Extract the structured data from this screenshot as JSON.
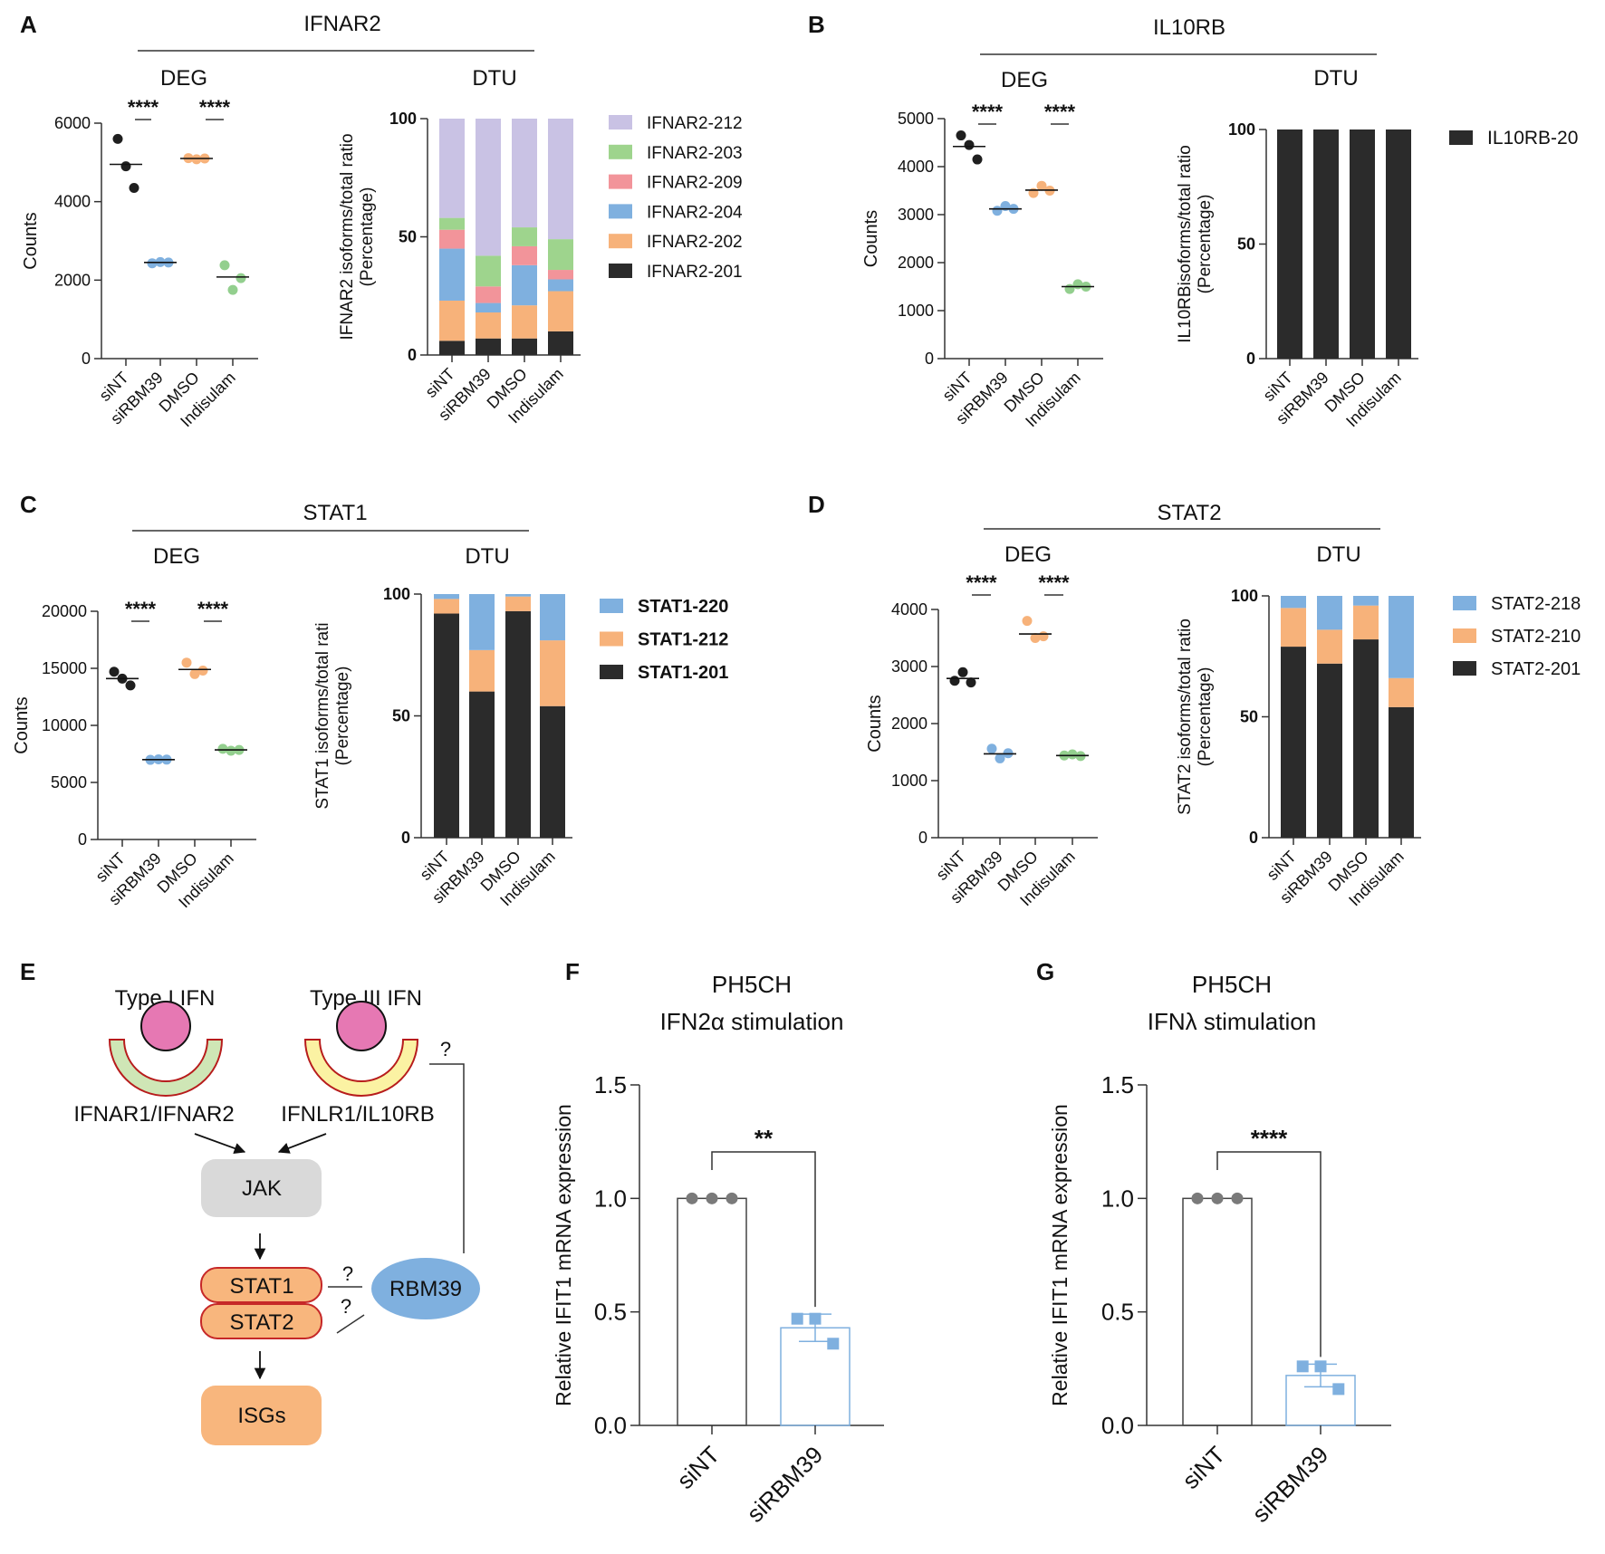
{
  "panel_letters": {
    "A": "A",
    "B": "B",
    "C": "C",
    "D": "D",
    "E": "E",
    "F": "F",
    "G": "G"
  },
  "sections": {
    "deg": "DEG",
    "dtu": "DTU"
  },
  "common": {
    "counts_label": "Counts",
    "conditions": [
      "siNT",
      "siRBM39",
      "DMSO",
      "Indisulam"
    ],
    "significance": "****"
  },
  "colors": {
    "black": "#1f1f1f",
    "blue": "#7fb0df",
    "orange": "#f7b27a",
    "green": "#93cf8e",
    "purple": "#c9c2e4",
    "lightgreen": "#9ed48d",
    "pink": "#f2949a",
    "darkbar": "#2b2b2b"
  },
  "chart_data": [
    {
      "id": "A-deg",
      "type": "scatter",
      "gene": "IFNAR2",
      "ylabel": "Counts",
      "categories": [
        "siNT",
        "siRBM39",
        "DMSO",
        "Indisulam"
      ],
      "ylim": [
        0,
        6000
      ],
      "yticks": [
        "0",
        "2000",
        "4000",
        "6000"
      ],
      "points": [
        [
          5600,
          4900,
          4350
        ],
        [
          2430,
          2460,
          2450
        ],
        [
          5110,
          5080,
          5100
        ],
        [
          2380,
          1750,
          2050
        ]
      ],
      "means": [
        4950,
        2450,
        5100,
        2080
      ],
      "significance": [
        "****",
        "****"
      ]
    },
    {
      "id": "A-dtu",
      "type": "bar",
      "stacked": true,
      "gene": "IFNAR2",
      "ylabel": "IFNAR2 isoforms/total ratio (Percentage)",
      "categories": [
        "siNT",
        "siRBM39",
        "DMSO",
        "Indisulam"
      ],
      "ylim": [
        0,
        100
      ],
      "yticks": [
        "0",
        "50",
        "100"
      ],
      "series": [
        {
          "name": "IFNAR2-201",
          "values": [
            6,
            7,
            7,
            10
          ]
        },
        {
          "name": "IFNAR2-202",
          "values": [
            17,
            11,
            14,
            17
          ]
        },
        {
          "name": "IFNAR2-204",
          "values": [
            22,
            4,
            17,
            5
          ]
        },
        {
          "name": "IFNAR2-209",
          "values": [
            8,
            7,
            8,
            4
          ]
        },
        {
          "name": "IFNAR2-203",
          "values": [
            5,
            13,
            8,
            13
          ]
        },
        {
          "name": "IFNAR2-212",
          "values": [
            42,
            58,
            46,
            51
          ]
        }
      ]
    },
    {
      "id": "B-deg",
      "type": "scatter",
      "gene": "IL10RB",
      "ylabel": "Counts",
      "categories": [
        "siNT",
        "siRBM39",
        "DMSO",
        "Indisulam"
      ],
      "ylim": [
        0,
        5000
      ],
      "yticks": [
        "0",
        "1000",
        "2000",
        "3000",
        "4000",
        "5000"
      ],
      "points": [
        [
          4650,
          4450,
          4150
        ],
        [
          3080,
          3180,
          3120
        ],
        [
          3450,
          3600,
          3500
        ],
        [
          1450,
          1550,
          1500
        ]
      ],
      "means": [
        4420,
        3120,
        3510,
        1500
      ],
      "significance": [
        "****",
        "****"
      ]
    },
    {
      "id": "B-dtu",
      "type": "bar",
      "stacked": true,
      "gene": "IL10RB",
      "ylabel": "IL10RBisoforms/total ratio (Percentage)",
      "categories": [
        "siNT",
        "siRBM39",
        "DMSO",
        "Indisulam"
      ],
      "ylim": [
        0,
        100
      ],
      "yticks": [
        "0",
        "50",
        "100"
      ],
      "series": [
        {
          "name": "IL10RB-20",
          "values": [
            100,
            100,
            100,
            100
          ]
        }
      ]
    },
    {
      "id": "C-deg",
      "type": "scatter",
      "gene": "STAT1",
      "ylabel": "Counts",
      "categories": [
        "siNT",
        "siRBM39",
        "DMSO",
        "Indisulam"
      ],
      "ylim": [
        0,
        20000
      ],
      "yticks": [
        "0",
        "5000",
        "10000",
        "15000",
        "20000"
      ],
      "points": [
        [
          14700,
          14100,
          13500
        ],
        [
          6980,
          7020,
          7000
        ],
        [
          15500,
          14500,
          14800
        ],
        [
          7950,
          7780,
          7850
        ]
      ],
      "means": [
        14100,
        7000,
        14900,
        7850
      ],
      "significance": [
        "****",
        "****"
      ]
    },
    {
      "id": "C-dtu",
      "type": "bar",
      "stacked": true,
      "gene": "STAT1",
      "ylabel": "STAT1 isoforms/total rati (Percentage)",
      "categories": [
        "siNT",
        "siRBM39",
        "DMSO",
        "Indisulam"
      ],
      "ylim": [
        0,
        100
      ],
      "yticks": [
        "0",
        "50",
        "100"
      ],
      "series": [
        {
          "name": "STAT1-201",
          "values": [
            92,
            60,
            93,
            54
          ]
        },
        {
          "name": "STAT1-212",
          "values": [
            6,
            17,
            6,
            27
          ]
        },
        {
          "name": "STAT1-220",
          "values": [
            2,
            23,
            1,
            19
          ]
        }
      ]
    },
    {
      "id": "D-deg",
      "type": "scatter",
      "gene": "STAT2",
      "ylabel": "Counts",
      "categories": [
        "siNT",
        "siRBM39",
        "DMSO",
        "Indisulam"
      ],
      "ylim": [
        0,
        4000
      ],
      "yticks": [
        "0",
        "1000",
        "2000",
        "3000",
        "4000"
      ],
      "points": [
        [
          2750,
          2900,
          2720
        ],
        [
          1560,
          1390,
          1480
        ],
        [
          3800,
          3500,
          3530
        ],
        [
          1440,
          1460,
          1430
        ]
      ],
      "means": [
        2790,
        1470,
        3570,
        1440
      ],
      "significance": [
        "****",
        "****"
      ]
    },
    {
      "id": "D-dtu",
      "type": "bar",
      "stacked": true,
      "gene": "STAT2",
      "ylabel": "STAT2 isoforms/total ratio (Percentage)",
      "categories": [
        "siNT",
        "siRBM39",
        "DMSO",
        "Indisulam"
      ],
      "ylim": [
        0,
        100
      ],
      "yticks": [
        "0",
        "50",
        "100"
      ],
      "series": [
        {
          "name": "STAT2-201",
          "values": [
            79,
            72,
            82,
            54
          ]
        },
        {
          "name": "STAT2-210",
          "values": [
            16,
            14,
            14,
            12
          ]
        },
        {
          "name": "STAT2-218",
          "values": [
            5,
            14,
            4,
            34
          ]
        }
      ]
    },
    {
      "id": "F",
      "type": "bar",
      "title": "PH5CH",
      "subtitle": "IFN2α stimulation",
      "ylabel": "Relative IFIT1 mRNA expression",
      "categories": [
        "siNT",
        "siRBM39"
      ],
      "values": [
        1.0,
        0.43
      ],
      "errors": [
        0.0,
        0.06
      ],
      "points": [
        [
          1.0,
          1.0,
          1.0
        ],
        [
          0.47,
          0.47,
          0.36
        ]
      ],
      "ylim": [
        0,
        1.5
      ],
      "yticks": [
        "0.0",
        "0.5",
        "1.0",
        "1.5"
      ],
      "significance": "**"
    },
    {
      "id": "G",
      "type": "bar",
      "title": "PH5CH",
      "subtitle": "IFNλ stimulation",
      "ylabel": "Relative IFIT1 mRNA expression",
      "categories": [
        "siNT",
        "siRBM39"
      ],
      "values": [
        1.0,
        0.22
      ],
      "errors": [
        0.0,
        0.05
      ],
      "points": [
        [
          1.0,
          1.0,
          1.0
        ],
        [
          0.26,
          0.26,
          0.16
        ]
      ],
      "ylim": [
        0,
        1.5
      ],
      "yticks": [
        "0.0",
        "0.5",
        "1.0",
        "1.5"
      ],
      "significance": "****"
    }
  ],
  "diagram": {
    "type1": "Type I IFN",
    "type3": "Type III IFN",
    "receptor1": "IFNAR1/IFNAR2",
    "receptor3": "IFNLR1/IL10RB",
    "jak": "JAK",
    "stat1": "STAT1",
    "stat2": "STAT2",
    "isgs": "ISGs",
    "rbm39": "RBM39",
    "question": "?"
  }
}
